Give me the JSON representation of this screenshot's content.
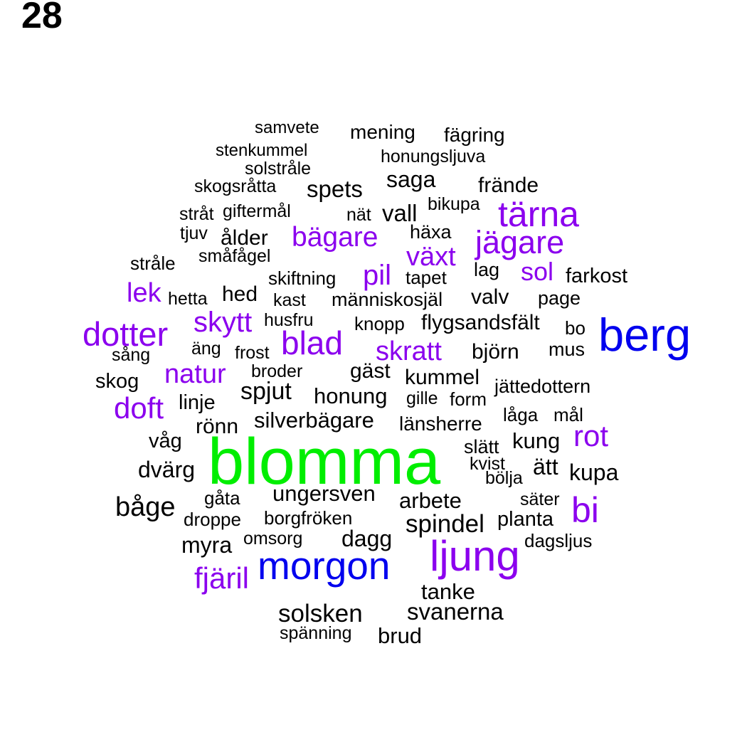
{
  "page_number": "28",
  "colors": {
    "level1": "#00ee00",
    "level2": "#0000ee",
    "level3": "#8b00ee",
    "level4": "#000000"
  },
  "words": [
    {
      "text": "samvete",
      "level": 4
    },
    {
      "text": "mening",
      "level": 4
    },
    {
      "text": "fägring",
      "level": 4
    },
    {
      "text": "stenkummel",
      "level": 4
    },
    {
      "text": "honungsljuva",
      "level": 4
    },
    {
      "text": "solstråle",
      "level": 4
    },
    {
      "text": "saga",
      "level": 4
    },
    {
      "text": "skogsråtta",
      "level": 4
    },
    {
      "text": "spets",
      "level": 4
    },
    {
      "text": "frände",
      "level": 4
    },
    {
      "text": "bikupa",
      "level": 4
    },
    {
      "text": "stråt",
      "level": 4
    },
    {
      "text": "giftermål",
      "level": 4
    },
    {
      "text": "nät",
      "level": 4
    },
    {
      "text": "vall",
      "level": 4
    },
    {
      "text": "tärna",
      "level": 3
    },
    {
      "text": "tjuv",
      "level": 4
    },
    {
      "text": "ålder",
      "level": 4
    },
    {
      "text": "bägare",
      "level": 3
    },
    {
      "text": "häxa",
      "level": 4
    },
    {
      "text": "jägare",
      "level": 3
    },
    {
      "text": "småfågel",
      "level": 4
    },
    {
      "text": "växt",
      "level": 3
    },
    {
      "text": "stråle",
      "level": 4
    },
    {
      "text": "skiftning",
      "level": 4
    },
    {
      "text": "pil",
      "level": 3
    },
    {
      "text": "tapet",
      "level": 4
    },
    {
      "text": "lag",
      "level": 4
    },
    {
      "text": "sol",
      "level": 3
    },
    {
      "text": "farkost",
      "level": 4
    },
    {
      "text": "lek",
      "level": 3
    },
    {
      "text": "hetta",
      "level": 4
    },
    {
      "text": "hed",
      "level": 4
    },
    {
      "text": "kast",
      "level": 4
    },
    {
      "text": "människosjäl",
      "level": 4
    },
    {
      "text": "valv",
      "level": 4
    },
    {
      "text": "page",
      "level": 4
    },
    {
      "text": "skytt",
      "level": 3
    },
    {
      "text": "husfru",
      "level": 4
    },
    {
      "text": "knopp",
      "level": 4
    },
    {
      "text": "flygsandsfält",
      "level": 4
    },
    {
      "text": "bo",
      "level": 4
    },
    {
      "text": "berg",
      "level": 2
    },
    {
      "text": "dotter",
      "level": 3
    },
    {
      "text": "blad",
      "level": 3
    },
    {
      "text": "äng",
      "level": 4
    },
    {
      "text": "frost",
      "level": 4
    },
    {
      "text": "skratt",
      "level": 3
    },
    {
      "text": "björn",
      "level": 4
    },
    {
      "text": "mus",
      "level": 4
    },
    {
      "text": "sång",
      "level": 4
    },
    {
      "text": "natur",
      "level": 3
    },
    {
      "text": "broder",
      "level": 4
    },
    {
      "text": "gäst",
      "level": 4
    },
    {
      "text": "kummel",
      "level": 4
    },
    {
      "text": "skog",
      "level": 4
    },
    {
      "text": "jättedottern",
      "level": 4
    },
    {
      "text": "spjut",
      "level": 4
    },
    {
      "text": "honung",
      "level": 4
    },
    {
      "text": "gille",
      "level": 4
    },
    {
      "text": "form",
      "level": 4
    },
    {
      "text": "linje",
      "level": 4
    },
    {
      "text": "doft",
      "level": 3
    },
    {
      "text": "låga",
      "level": 4
    },
    {
      "text": "mål",
      "level": 4
    },
    {
      "text": "silverbägare",
      "level": 4
    },
    {
      "text": "länsherre",
      "level": 4
    },
    {
      "text": "rönn",
      "level": 4
    },
    {
      "text": "rot",
      "level": 3
    },
    {
      "text": "våg",
      "level": 4
    },
    {
      "text": "kung",
      "level": 4
    },
    {
      "text": "slätt",
      "level": 4
    },
    {
      "text": "blomma",
      "level": 1
    },
    {
      "text": "kvist",
      "level": 4
    },
    {
      "text": "ätt",
      "level": 4
    },
    {
      "text": "dvärg",
      "level": 4
    },
    {
      "text": "kupa",
      "level": 4
    },
    {
      "text": "bölja",
      "level": 4
    },
    {
      "text": "ungersven",
      "level": 4
    },
    {
      "text": "gåta",
      "level": 4
    },
    {
      "text": "arbete",
      "level": 4
    },
    {
      "text": "säter",
      "level": 4
    },
    {
      "text": "båge",
      "level": 4
    },
    {
      "text": "bi",
      "level": 3
    },
    {
      "text": "borgfröken",
      "level": 4
    },
    {
      "text": "droppe",
      "level": 4
    },
    {
      "text": "planta",
      "level": 4
    },
    {
      "text": "spindel",
      "level": 4
    },
    {
      "text": "omsorg",
      "level": 4
    },
    {
      "text": "dagg",
      "level": 4
    },
    {
      "text": "myra",
      "level": 4
    },
    {
      "text": "dagsljus",
      "level": 4
    },
    {
      "text": "ljung",
      "level": 3
    },
    {
      "text": "morgon",
      "level": 2
    },
    {
      "text": "fjäril",
      "level": 3
    },
    {
      "text": "tanke",
      "level": 4
    },
    {
      "text": "solsken",
      "level": 4
    },
    {
      "text": "svanerna",
      "level": 4
    },
    {
      "text": "spänning",
      "level": 4
    },
    {
      "text": "brud",
      "level": 4
    }
  ]
}
